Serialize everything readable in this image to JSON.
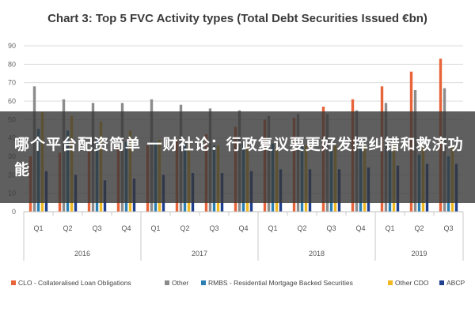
{
  "chart_data": {
    "type": "bar",
    "title": "Chart 3: Top 5 FVC Activity types (Total Debt Securities Issued €bn)",
    "ylim": [
      0,
      90
    ],
    "yticks": [
      "0",
      "10",
      "20",
      "30",
      "40",
      "50",
      "60",
      "70",
      "80",
      "90"
    ],
    "categories": [
      "Q1",
      "Q2",
      "Q3",
      "Q4",
      "Q1",
      "Q2",
      "Q3",
      "Q4",
      "Q1",
      "Q2",
      "Q3",
      "Q4",
      "Q1",
      "Q2",
      "Q3"
    ],
    "years": [
      {
        "label": "2016",
        "count": 4
      },
      {
        "label": "2017",
        "count": 4
      },
      {
        "label": "2018",
        "count": 4
      },
      {
        "label": "2019",
        "count": 3
      }
    ],
    "legend_position": "bottom",
    "series": [
      {
        "name": "CLO - Collateralised Loan Obligations",
        "color": "#e8643a",
        "values": [
          30,
          32,
          33,
          36,
          36,
          39,
          42,
          46,
          50,
          51,
          57,
          61,
          68,
          76,
          83
        ]
      },
      {
        "name": "Other",
        "color": "#8c8c8c",
        "values": [
          68,
          61,
          59,
          59,
          61,
          58,
          56,
          55,
          52,
          53,
          53,
          55,
          59,
          66,
          67
        ]
      },
      {
        "name": "RMBS - Residential Mortgage Backed Securities",
        "color": "#2b7fb3",
        "values": [
          45,
          44,
          40,
          38,
          38,
          37,
          36,
          37,
          37,
          36,
          34,
          34,
          33,
          31,
          30
        ]
      },
      {
        "name": "Other CDO",
        "color": "#f0b821",
        "values": [
          54,
          52,
          49,
          44,
          39,
          38,
          36,
          36,
          36,
          36,
          36,
          36,
          36,
          35,
          36
        ]
      },
      {
        "name": "ABCP",
        "color": "#1f3f8f",
        "values": [
          22,
          20,
          17,
          18,
          20,
          21,
          21,
          22,
          23,
          23,
          23,
          24,
          25,
          26,
          26
        ]
      }
    ]
  },
  "overlay": {
    "text": "哪个平台配资简单 一财社论：行政复议要更好发挥纠错和救济功能"
  }
}
